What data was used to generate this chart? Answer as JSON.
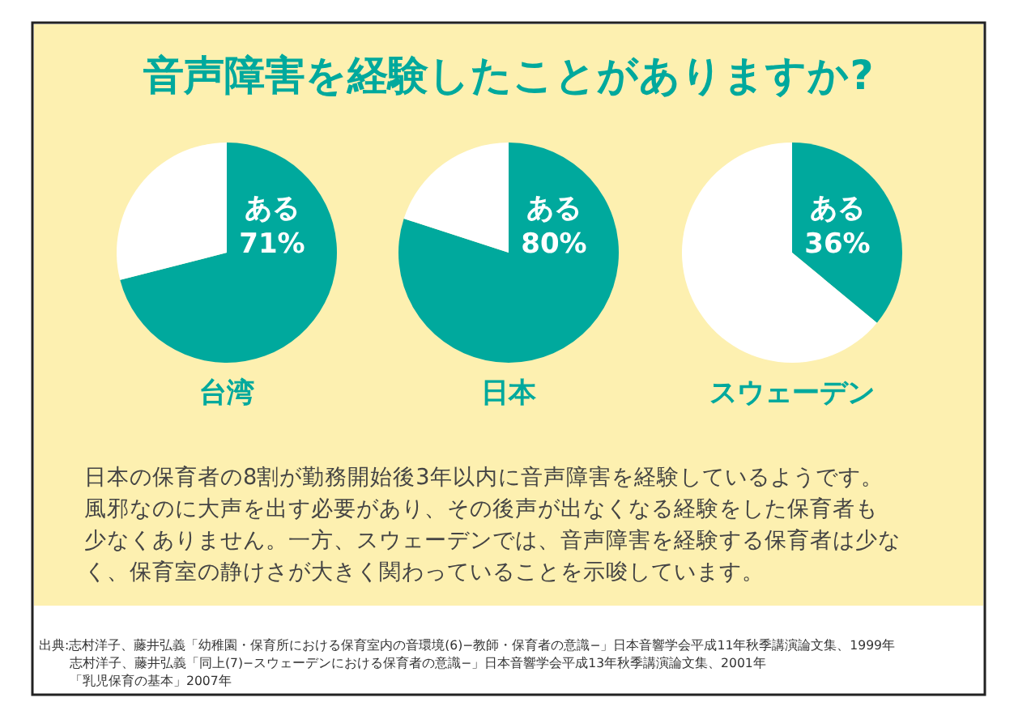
{
  "chart_data": [
    {
      "type": "pie",
      "title": "音声障害を経験したことがありますか?",
      "xlabel": "台湾",
      "categories": [
        "ある",
        null
      ],
      "values": [
        71,
        29
      ],
      "value_labels": [
        "71%",
        null
      ],
      "colors": [
        "#00a99d",
        "#ffffff"
      ],
      "annotations": [
        "日本の保育者の8割が勤務開始後3年以内に音声障害を経験しているようです。",
        "風邪なのに大声を出す必要があり、その後声が出なくなる経験をした保育者も",
        "少なくありません。一方、スウェーデンでは、音声障害を経験する保育者は少な",
        "く、保育室の静けさが大きく関わっていることを示唆しています。",
        "出典:志村洋子、藤井弘義「幼稚園・保育所における保育室内の音環境(6)−教師・保育者の意識−」日本音響学会平成11年秋季講演論文集、1999年",
        "志村洋子、藤井弘義「同上(7)−スウェーデンにおける保育者の意識−」日本音響学会平成13年秋季講演論文集、2001年",
        "「乳児保育の基本」2007年"
      ]
    },
    {
      "type": "pie",
      "xlabel": "日本",
      "categories": [
        "ある",
        null
      ],
      "values": [
        80,
        20
      ],
      "value_labels": [
        "80%",
        null
      ],
      "colors": [
        "#00a99d",
        "#ffffff"
      ]
    },
    {
      "type": "pie",
      "xlabel": "スウェーデン",
      "categories": [
        "ある",
        null
      ],
      "values": [
        36,
        64
      ],
      "value_labels": [
        "36%",
        null
      ],
      "colors": [
        "#00a99d",
        "#ffffff"
      ]
    }
  ]
}
